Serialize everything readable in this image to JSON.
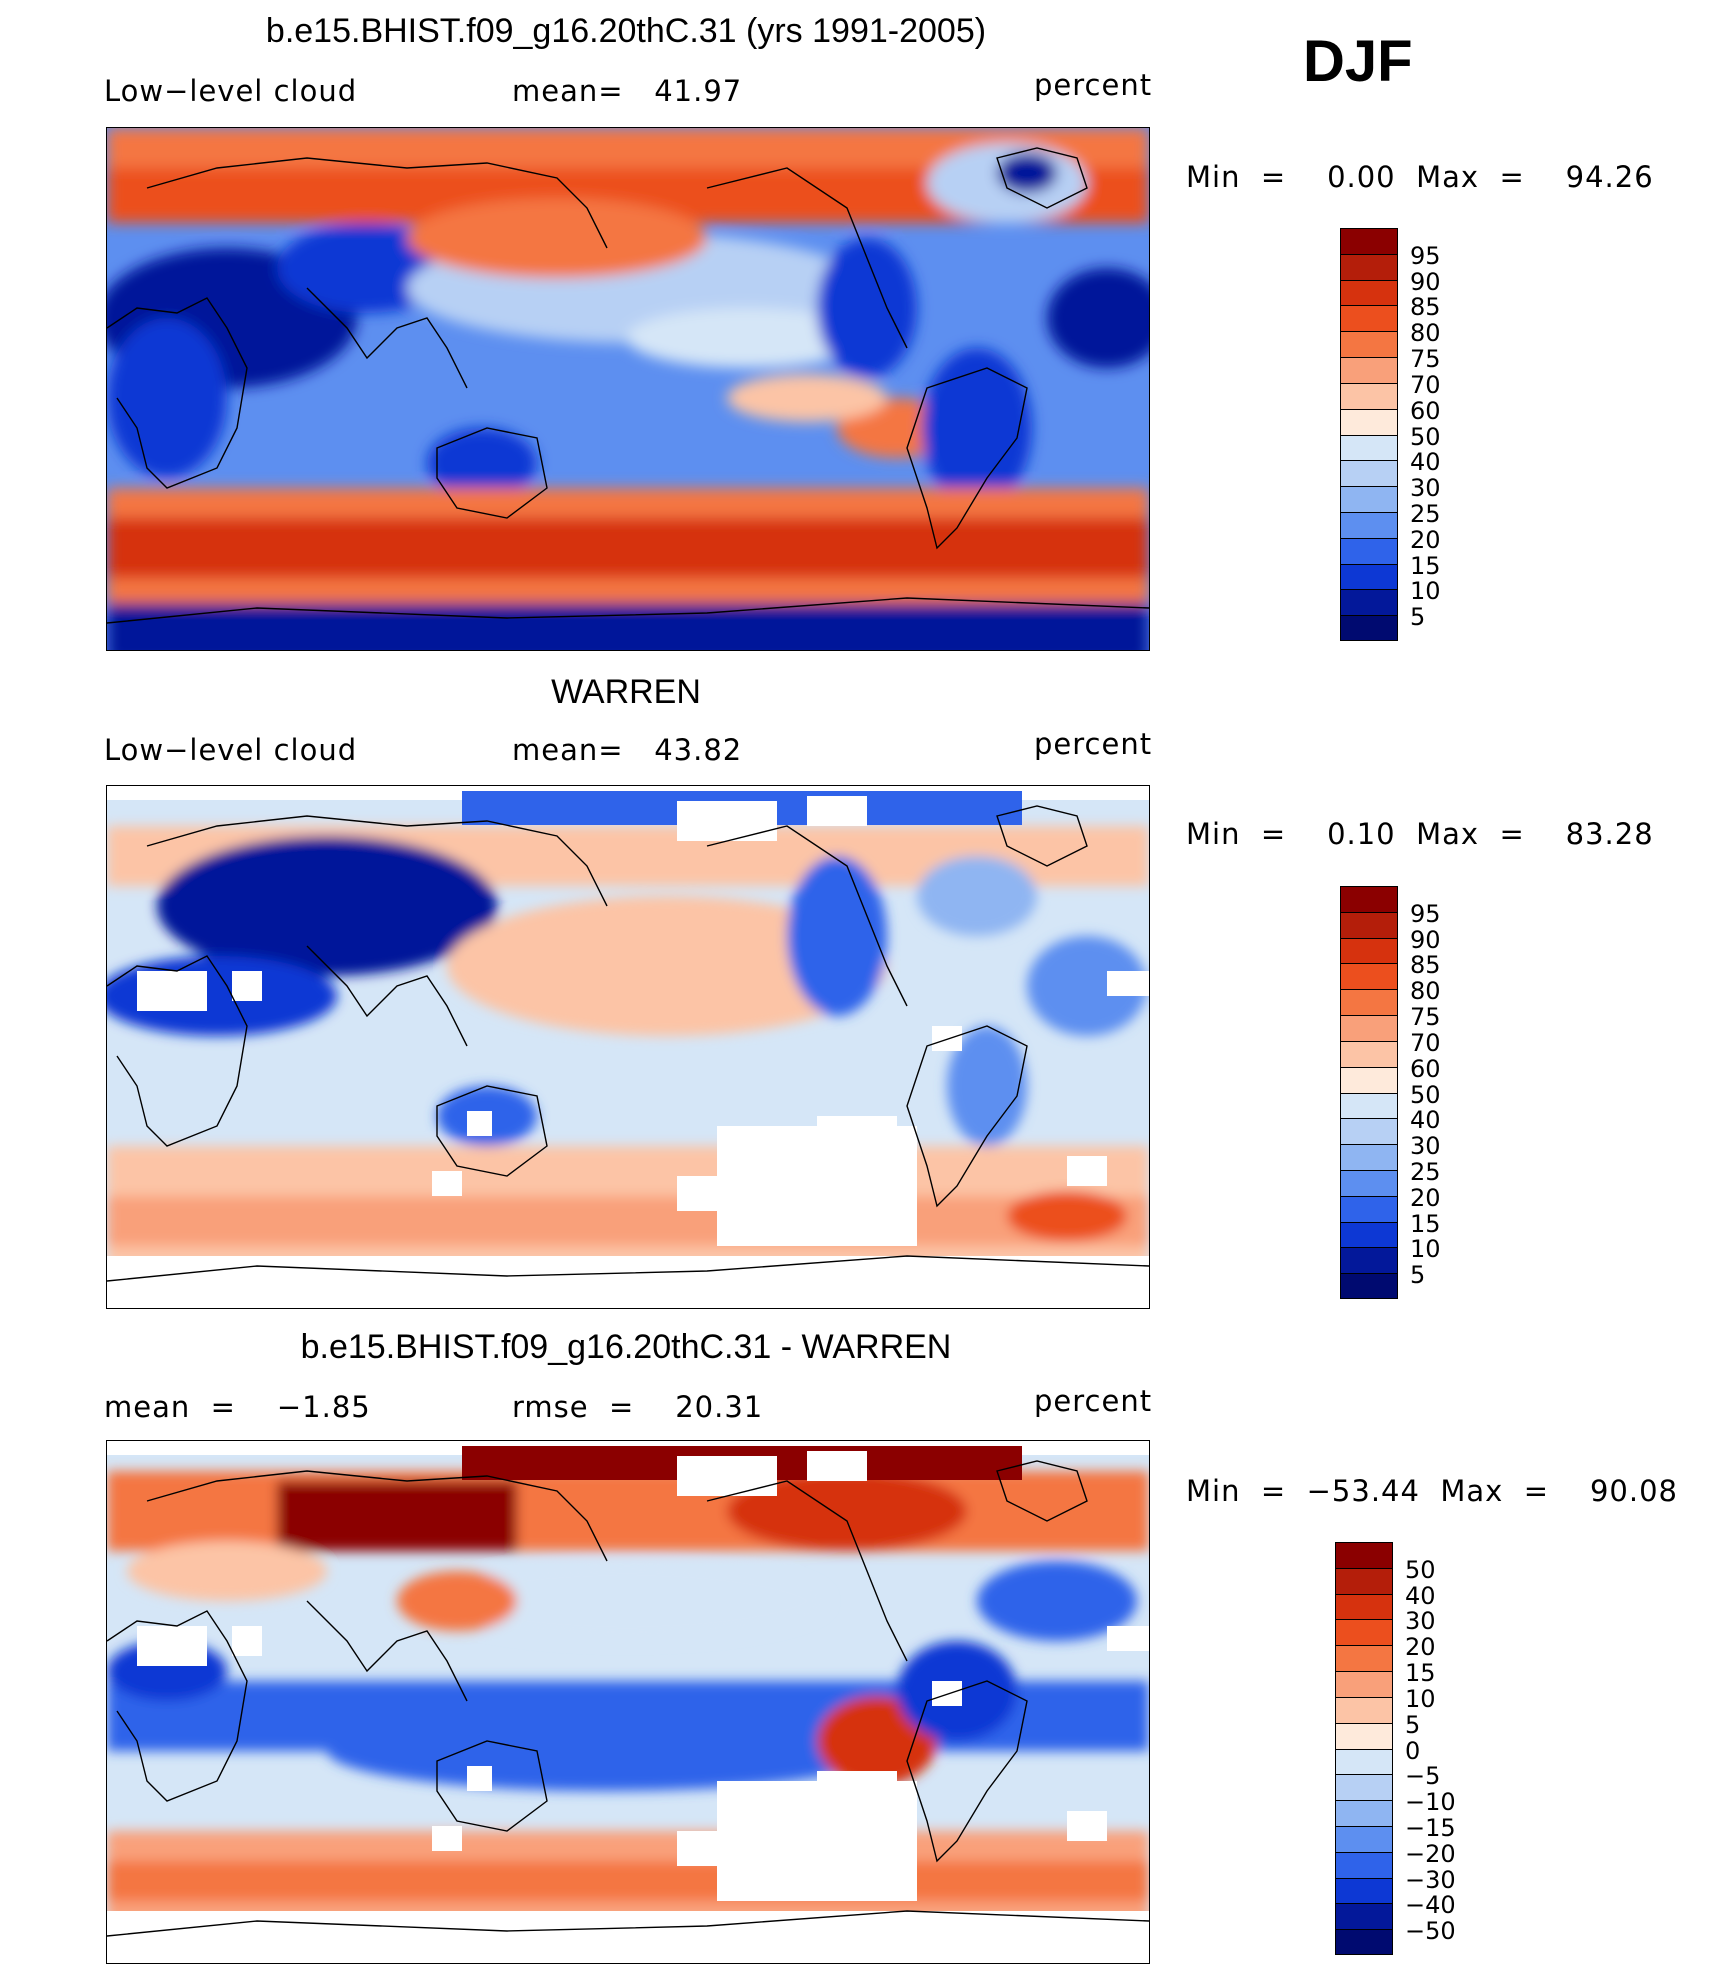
{
  "season": "DJF",
  "panels": [
    {
      "title": "b.e15.BHIST.f09_g16.20thC.31 (yrs 1991-2005)",
      "left_label": "Low−level cloud",
      "center_label": "mean=   41.97",
      "right_label": "percent",
      "minmax": "Min  =    0.00  Max  =    94.26",
      "kind": "model"
    },
    {
      "title": "WARREN",
      "left_label": "Low−level cloud",
      "center_label": "mean=   43.82",
      "right_label": "percent",
      "minmax": "Min  =    0.10  Max  =    83.28",
      "kind": "obs"
    },
    {
      "title": "b.e15.BHIST.f09_g16.20thC.31 - WARREN",
      "left_label": "mean  =    −1.85",
      "center_label": "rmse  =    20.31",
      "right_label": "percent",
      "minmax": "Min  =  −53.44  Max  =    90.08",
      "kind": "diff"
    }
  ],
  "colorbars": {
    "absolute": {
      "labels": [
        "95",
        "90",
        "85",
        "80",
        "75",
        "70",
        "60",
        "50",
        "40",
        "30",
        "25",
        "20",
        "15",
        "10",
        "5"
      ],
      "colors": [
        "#8b0000",
        "#b41e0a",
        "#d6320e",
        "#ec4f1e",
        "#f47642",
        "#f9a07a",
        "#fcc4a6",
        "#feeadb",
        "#d5e6f7",
        "#b7d0f4",
        "#8fb5f2",
        "#5d8ff0",
        "#2f63ea",
        "#0d38d4",
        "#03189a",
        "#000a70"
      ]
    },
    "difference": {
      "labels": [
        "50",
        "40",
        "30",
        "20",
        "15",
        "10",
        "5",
        "0",
        "−5",
        "−10",
        "−15",
        "−20",
        "−30",
        "−40",
        "−50"
      ],
      "colors": [
        "#8b0000",
        "#b41e0a",
        "#d6320e",
        "#ec4f1e",
        "#f47642",
        "#f9a07a",
        "#fcc4a6",
        "#feeadb",
        "#d5e6f7",
        "#b7d0f4",
        "#8fb5f2",
        "#5d8ff0",
        "#2f63ea",
        "#0d38d4",
        "#03189a",
        "#000a70"
      ]
    }
  }
}
